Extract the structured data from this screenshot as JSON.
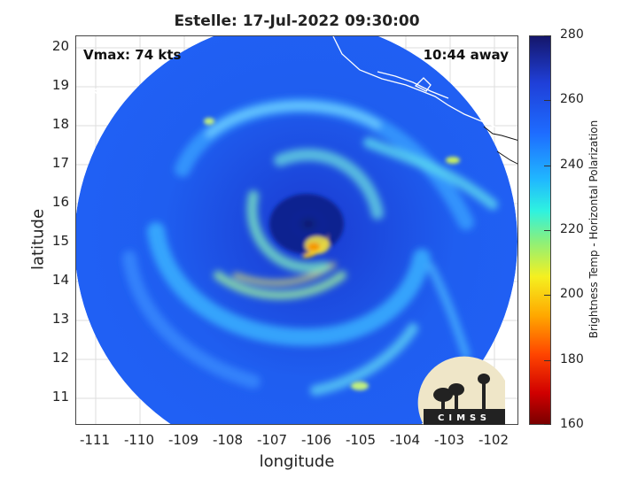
{
  "title": "Estelle: 17-Jul-2022 09:30:00",
  "annotations": {
    "vmax": "Vmax: 74 kts",
    "time_away": "10:44 away"
  },
  "axes": {
    "xlabel": "longitude",
    "ylabel": "latitude",
    "xticks": [
      "-111",
      "-110",
      "-109",
      "-108",
      "-107",
      "-106",
      "-105",
      "-104",
      "-103",
      "-102"
    ],
    "yticks": [
      "20",
      "19",
      "18",
      "17",
      "16",
      "15",
      "14",
      "13",
      "12",
      "11"
    ],
    "xlim": [
      -111.5,
      -101.5
    ],
    "ylim": [
      10.3,
      20.3
    ],
    "grid": true
  },
  "colorbar": {
    "label": "Brightness Temp - Horizontal Polarization",
    "ticks": [
      "280",
      "260",
      "240",
      "220",
      "200",
      "180",
      "160"
    ],
    "range": [
      160,
      280
    ],
    "colormap": "jet"
  },
  "logo": {
    "text": "CIMSS"
  },
  "colors": {
    "background": "#ffffff",
    "ocean_base": "#1f4fe0",
    "eye": "#0b1f7a",
    "eyewall": "#f2d600"
  }
}
